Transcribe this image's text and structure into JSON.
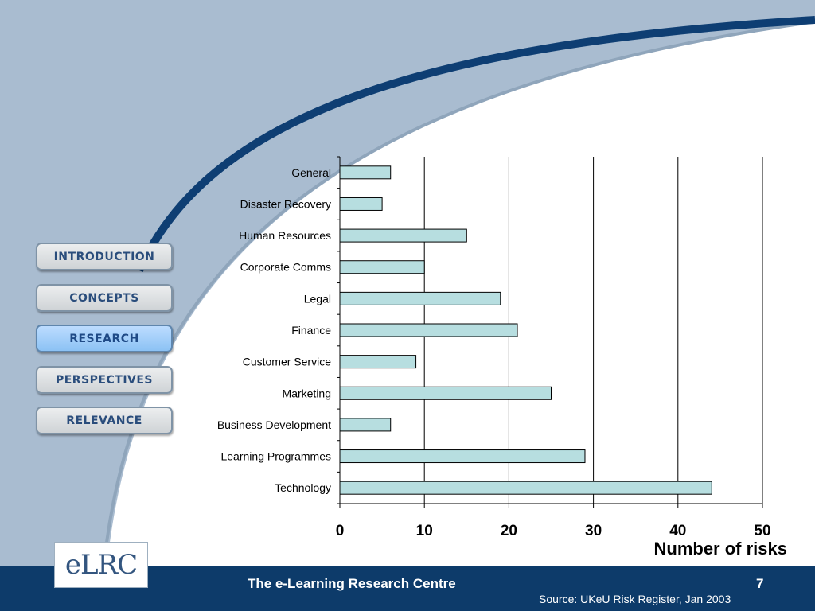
{
  "nav": {
    "items": [
      {
        "label": "INTRODUCTION",
        "active": false
      },
      {
        "label": "CONCEPTS",
        "active": false
      },
      {
        "label": "RESEARCH",
        "active": true
      },
      {
        "label": "PERSPECTIVES",
        "active": false
      },
      {
        "label": "RELEVANCE",
        "active": false
      }
    ]
  },
  "logo": {
    "text": "eLRC"
  },
  "footer": {
    "title": "The e-Learning Research Centre",
    "slide_number": "7",
    "source": "Source: UKeU Risk Register, Jan 2003"
  },
  "colors": {
    "background_blue": "#a9bcd0",
    "arc_navy": "#0e3e73",
    "footer_navy": "#0d3b6a",
    "bar_fill": "#b7dee0"
  },
  "chart_data": {
    "type": "bar",
    "orientation": "horizontal",
    "categories": [
      "General",
      "Disaster Recovery",
      "Human Resources",
      "Corporate Comms",
      "Legal",
      "Finance",
      "Customer Service",
      "Marketing",
      "Business Development",
      "Learning Programmes",
      "Technology"
    ],
    "values": [
      6,
      5,
      15,
      10,
      19,
      21,
      9,
      25,
      6,
      29,
      44
    ],
    "xlabel": "Number of risks",
    "xlim": [
      0,
      50
    ],
    "xticks": [
      0,
      10,
      20,
      30,
      40,
      50
    ],
    "grid": true
  }
}
